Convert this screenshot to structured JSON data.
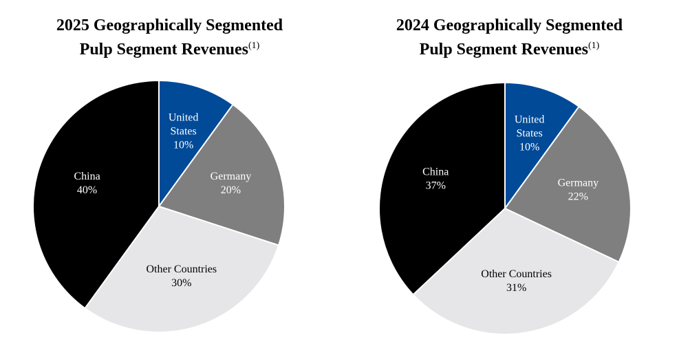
{
  "chart_data": [
    {
      "type": "pie",
      "title_line1": "2025 Geographically Segmented",
      "title_line2": "Pulp Segment Revenues",
      "footnote": "(1)",
      "slices": [
        {
          "label": [
            "United",
            "States"
          ],
          "value_text": "10%",
          "value": 10,
          "color": "#004a98",
          "text_color": "#ffffff"
        },
        {
          "label": [
            "Germany"
          ],
          "value_text": "20%",
          "value": 20,
          "color": "#7f7f7f",
          "text_color": "#ffffff"
        },
        {
          "label": [
            "Other Countries"
          ],
          "value_text": "30%",
          "value": 30,
          "color": "#e6e6e8",
          "text_color": "#000000"
        },
        {
          "label": [
            "China"
          ],
          "value_text": "40%",
          "value": 40,
          "color": "#000000",
          "text_color": "#ffffff"
        }
      ]
    },
    {
      "type": "pie",
      "title_line1": "2024 Geographically Segmented",
      "title_line2": "Pulp Segment Revenues",
      "footnote": "(1)",
      "slices": [
        {
          "label": [
            "United",
            "States"
          ],
          "value_text": "10%",
          "value": 10,
          "color": "#004a98",
          "text_color": "#ffffff"
        },
        {
          "label": [
            "Germany"
          ],
          "value_text": "22%",
          "value": 22,
          "color": "#7f7f7f",
          "text_color": "#ffffff"
        },
        {
          "label": [
            "Other Countries"
          ],
          "value_text": "31%",
          "value": 31,
          "color": "#e6e6e8",
          "text_color": "#000000"
        },
        {
          "label": [
            "China"
          ],
          "value_text": "37%",
          "value": 37,
          "color": "#000000",
          "text_color": "#ffffff"
        }
      ]
    }
  ]
}
